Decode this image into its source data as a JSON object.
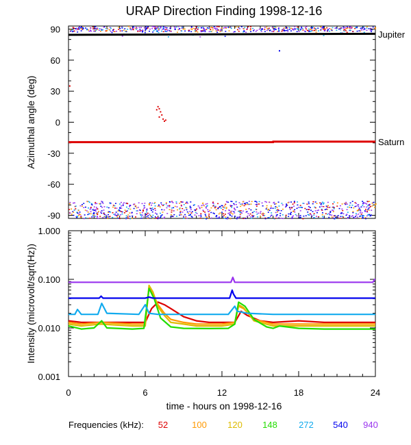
{
  "title": "URAP Direction Finding  1998-12-16",
  "xlabel": "time - hours on 1998-12-16",
  "legend": {
    "label": "Frequencies (kHz):",
    "items": [
      {
        "name": "52",
        "color": "#dd0000"
      },
      {
        "name": "100",
        "color": "#ff9900"
      },
      {
        "name": "120",
        "color": "#ddbb00"
      },
      {
        "name": "148",
        "color": "#22dd00"
      },
      {
        "name": "272",
        "color": "#11aaee"
      },
      {
        "name": "540",
        "color": "#0000ee"
      },
      {
        "name": "940",
        "color": "#9933ee"
      }
    ]
  },
  "chart_data": [
    {
      "type": "scatter",
      "ylabel": "Azimuthal angle (deg)",
      "xlim": [
        0,
        24
      ],
      "ylim": [
        -93,
        93
      ],
      "xticks": [
        "0",
        "6",
        "12",
        "18",
        "24"
      ],
      "yticks": [
        "90",
        "60",
        "30",
        "0",
        "-30",
        "-60",
        "-90"
      ],
      "right_labels": [
        {
          "text": "Jupiter",
          "y": 85
        },
        {
          "text": "Saturn",
          "y": -19
        }
      ],
      "series": [
        {
          "name": "Jupiter",
          "color": "#000000",
          "x": [
            0,
            24
          ],
          "y": [
            84.5,
            85.5
          ]
        },
        {
          "name": "Saturn",
          "color": "#dd0000",
          "x": [
            0,
            16,
            16.01,
            24
          ],
          "y": [
            -19.3,
            -19.3,
            -18.8,
            -18.8
          ]
        },
        {
          "name": "52",
          "color": "#dd0000",
          "x": [
            6.9,
            7.0,
            7.1,
            7.2,
            7.3,
            7.1,
            7.4,
            7.6,
            7.5,
            0.1
          ],
          "y": [
            12,
            15,
            13,
            10,
            7,
            5,
            3,
            2,
            1,
            35
          ]
        },
        {
          "name": "540",
          "color": "#0000ee",
          "x": [
            16.5
          ],
          "y": [
            69
          ]
        }
      ]
    },
    {
      "type": "line",
      "ylabel": "Intensity (microvolt/sqrt(Hz))",
      "xlim": [
        0,
        24
      ],
      "ylim": [
        0.001,
        1.0
      ],
      "yscale": "log",
      "xticks": [
        "0",
        "6",
        "12",
        "18",
        "24"
      ],
      "yticks": [
        "1.000",
        "0.100",
        "0.010",
        "0.001"
      ],
      "series": [
        {
          "name": "52",
          "color": "#dd0000",
          "x": [
            0,
            1,
            2.5,
            5,
            6,
            6.5,
            7,
            7.5,
            8,
            9,
            10,
            11,
            12,
            13,
            13.5,
            14,
            15,
            16,
            18,
            20,
            22,
            24
          ],
          "y": [
            0.014,
            0.013,
            0.013,
            0.013,
            0.013,
            0.025,
            0.034,
            0.03,
            0.025,
            0.017,
            0.014,
            0.013,
            0.013,
            0.013,
            0.022,
            0.018,
            0.014,
            0.013,
            0.014,
            0.013,
            0.013,
            0.013
          ]
        },
        {
          "name": "100",
          "color": "#ff9900",
          "x": [
            0,
            1,
            2.5,
            5,
            6,
            6.3,
            6.6,
            7,
            7.5,
            8,
            9,
            10,
            12,
            13,
            13.3,
            13.7,
            14.5,
            16,
            18,
            20,
            22,
            24
          ],
          "y": [
            0.013,
            0.012,
            0.013,
            0.012,
            0.012,
            0.07,
            0.05,
            0.03,
            0.02,
            0.015,
            0.013,
            0.012,
            0.012,
            0.013,
            0.028,
            0.025,
            0.015,
            0.012,
            0.012,
            0.012,
            0.012,
            0.012
          ]
        },
        {
          "name": "120",
          "color": "#ddbb00",
          "x": [
            0,
            1,
            2.5,
            5,
            6,
            6.3,
            6.6,
            7,
            7.5,
            8,
            9,
            10,
            12,
            13,
            13.3,
            13.7,
            14.5,
            16,
            18,
            20,
            22,
            24
          ],
          "y": [
            0.012,
            0.011,
            0.012,
            0.011,
            0.011,
            0.075,
            0.055,
            0.027,
            0.018,
            0.013,
            0.012,
            0.011,
            0.011,
            0.012,
            0.03,
            0.026,
            0.014,
            0.011,
            0.011,
            0.011,
            0.011,
            0.011
          ]
        },
        {
          "name": "148",
          "color": "#22dd00",
          "x": [
            0,
            1,
            2,
            2.6,
            3,
            5,
            5.9,
            6.3,
            6.7,
            7.2,
            8,
            9,
            11,
            12.5,
            13,
            13.3,
            13.8,
            14.5,
            15.5,
            16,
            16.5,
            18,
            20,
            22,
            24
          ],
          "y": [
            0.011,
            0.0095,
            0.01,
            0.014,
            0.01,
            0.0095,
            0.0098,
            0.065,
            0.04,
            0.016,
            0.0105,
            0.0098,
            0.0097,
            0.0098,
            0.012,
            0.034,
            0.028,
            0.015,
            0.0105,
            0.0098,
            0.011,
            0.0098,
            0.0095,
            0.0095,
            0.0095
          ]
        },
        {
          "name": "272",
          "color": "#11aaee",
          "x": [
            0,
            0.5,
            0.7,
            1,
            2.3,
            2.6,
            3,
            5.5,
            6,
            6.3,
            7,
            8,
            10,
            12.5,
            13,
            13.2,
            14,
            16,
            18,
            20,
            22,
            24
          ],
          "y": [
            0.019,
            0.019,
            0.024,
            0.019,
            0.019,
            0.032,
            0.02,
            0.019,
            0.03,
            0.02,
            0.019,
            0.019,
            0.019,
            0.019,
            0.028,
            0.022,
            0.02,
            0.019,
            0.019,
            0.019,
            0.019,
            0.019
          ]
        },
        {
          "name": "540",
          "color": "#0000ee",
          "x": [
            0,
            2.4,
            2.55,
            2.7,
            6,
            6.3,
            6.6,
            12.6,
            12.8,
            12.9,
            13.1,
            16,
            20,
            24
          ],
          "y": [
            0.041,
            0.041,
            0.045,
            0.041,
            0.041,
            0.043,
            0.041,
            0.041,
            0.06,
            0.05,
            0.041,
            0.041,
            0.041,
            0.041
          ]
        },
        {
          "name": "940",
          "color": "#9933ee",
          "x": [
            0,
            6,
            12.7,
            12.85,
            13.0,
            16,
            20,
            23.8,
            23.95,
            24
          ],
          "y": [
            0.087,
            0.087,
            0.087,
            0.11,
            0.087,
            0.087,
            0.087,
            0.087,
            0.1,
            0.1
          ]
        }
      ]
    }
  ]
}
